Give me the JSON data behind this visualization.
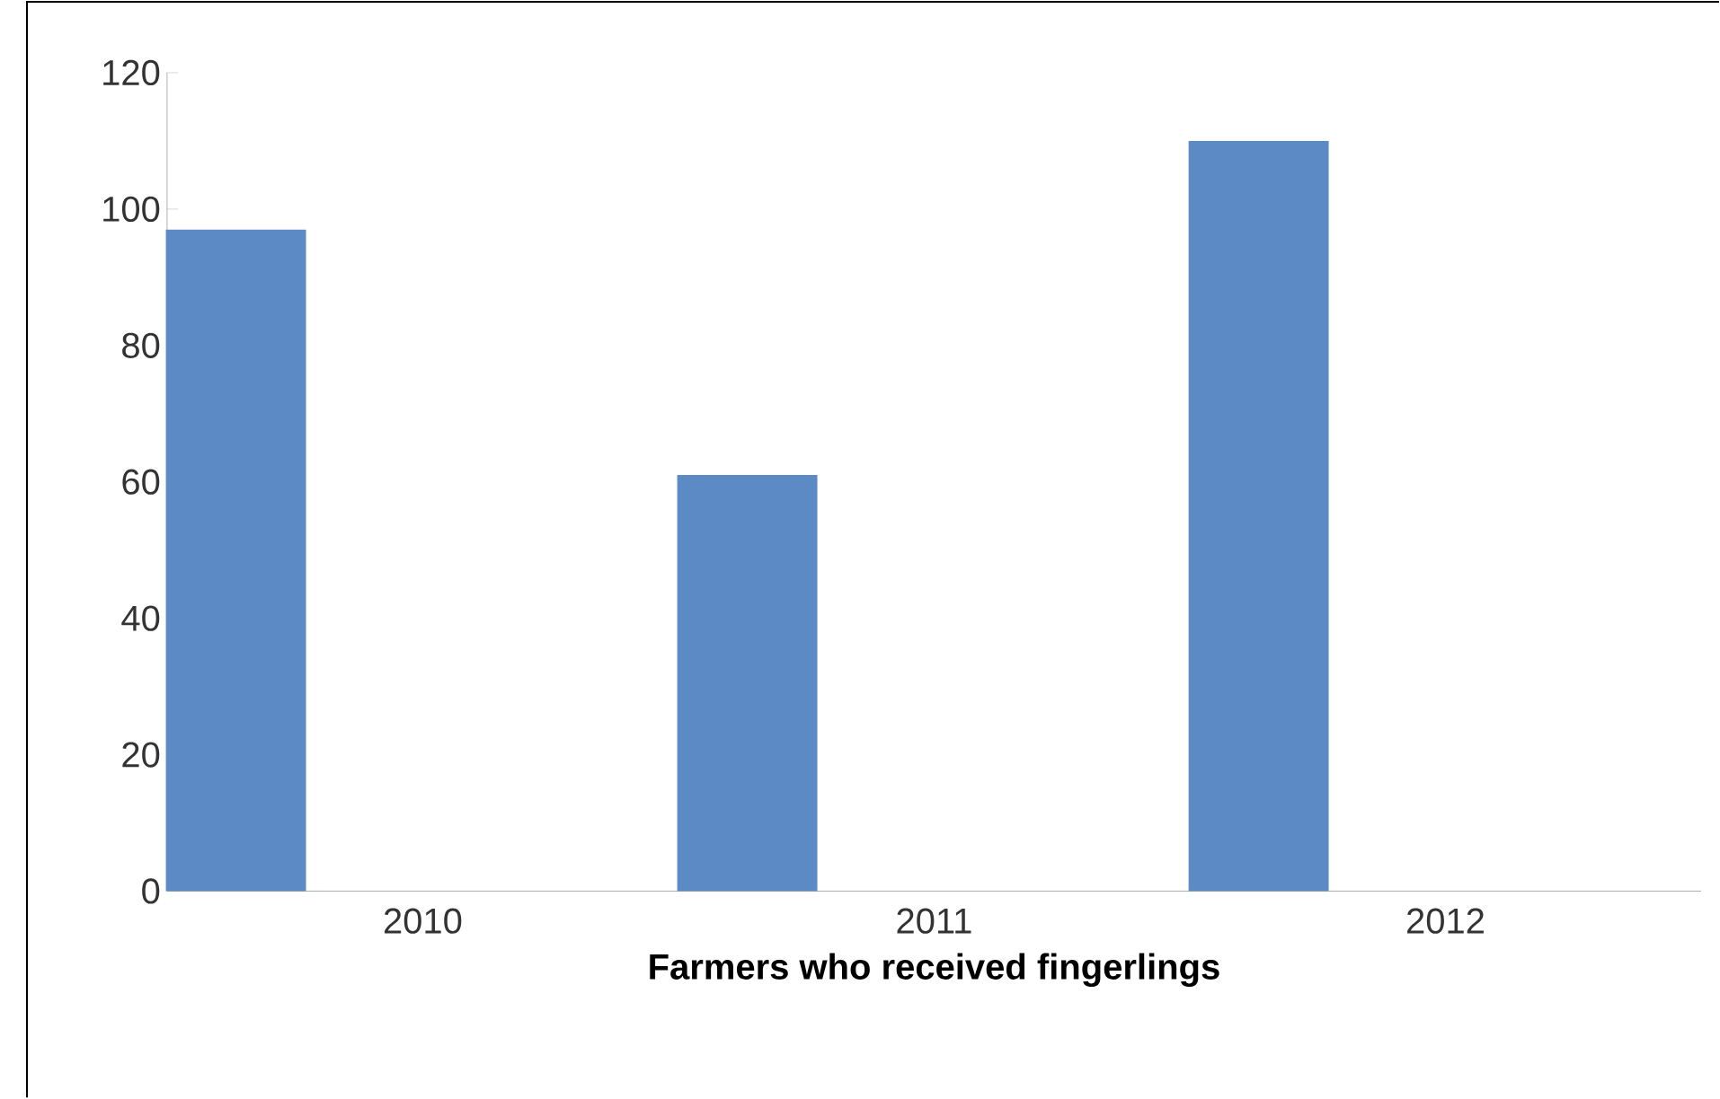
{
  "chart_data": {
    "type": "bar",
    "xlabel": "Farmers who received fingerlings",
    "categories": [
      "2010",
      "2011",
      "2012"
    ],
    "values": [
      97,
      61,
      110
    ],
    "color": "#5b8ac5",
    "ylim": [
      0,
      120
    ],
    "yticks": [
      0,
      20,
      40,
      60,
      80,
      100,
      120
    ],
    "grid": false
  }
}
